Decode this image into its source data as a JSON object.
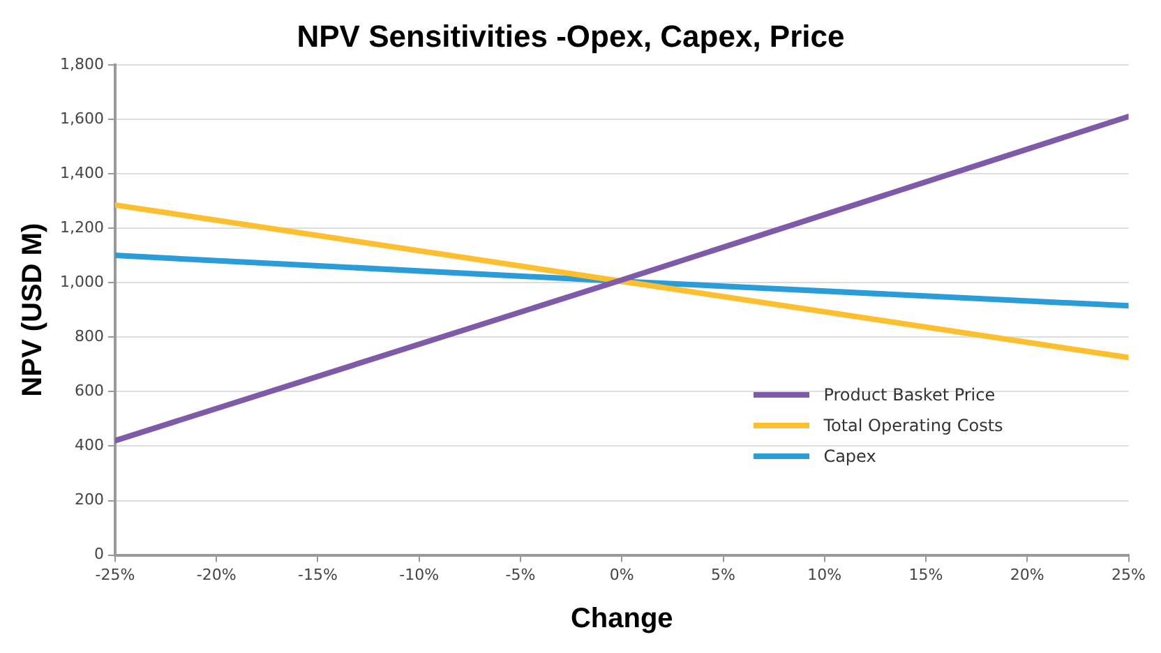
{
  "chart_data": {
    "type": "line",
    "title": "NPV Sensitivities -Opex, Capex, Price",
    "xlabel": "Change",
    "ylabel": "NPV (USD M)",
    "x": [
      -25,
      0,
      25
    ],
    "series": [
      {
        "name": "Product Basket Price",
        "color": "#7f5aa8",
        "values": [
          420,
          1010,
          1610
        ]
      },
      {
        "name": "Total Operating Costs",
        "color": "#fdbf2d",
        "values": [
          1285,
          1005,
          725
        ]
      },
      {
        "name": "Capex",
        "color": "#2a9dd8",
        "values": [
          1100,
          1005,
          915
        ]
      }
    ],
    "xlim": [
      -25,
      25
    ],
    "xticks": [
      {
        "value": -25,
        "label": "-25%"
      },
      {
        "value": -20,
        "label": "-20%"
      },
      {
        "value": -15,
        "label": "-15%"
      },
      {
        "value": -10,
        "label": "-10%"
      },
      {
        "value": -5,
        "label": "-5%"
      },
      {
        "value": 0,
        "label": "0%"
      },
      {
        "value": 5,
        "label": "5%"
      },
      {
        "value": 10,
        "label": "10%"
      },
      {
        "value": 15,
        "label": "15%"
      },
      {
        "value": 20,
        "label": "20%"
      },
      {
        "value": 25,
        "label": "25%"
      }
    ],
    "ylim": [
      0,
      1800
    ],
    "yticks": [
      0,
      200,
      400,
      600,
      800,
      {
        "value": 1000,
        "label": "1,000"
      },
      {
        "value": 1200,
        "label": "1,200"
      },
      {
        "value": 1400,
        "label": "1,400"
      },
      {
        "value": 1600,
        "label": "1,600"
      },
      {
        "value": 1800,
        "label": "1,800"
      }
    ],
    "grid": "y",
    "legend": "bottom right",
    "marker": "none",
    "line_style": "solid"
  }
}
